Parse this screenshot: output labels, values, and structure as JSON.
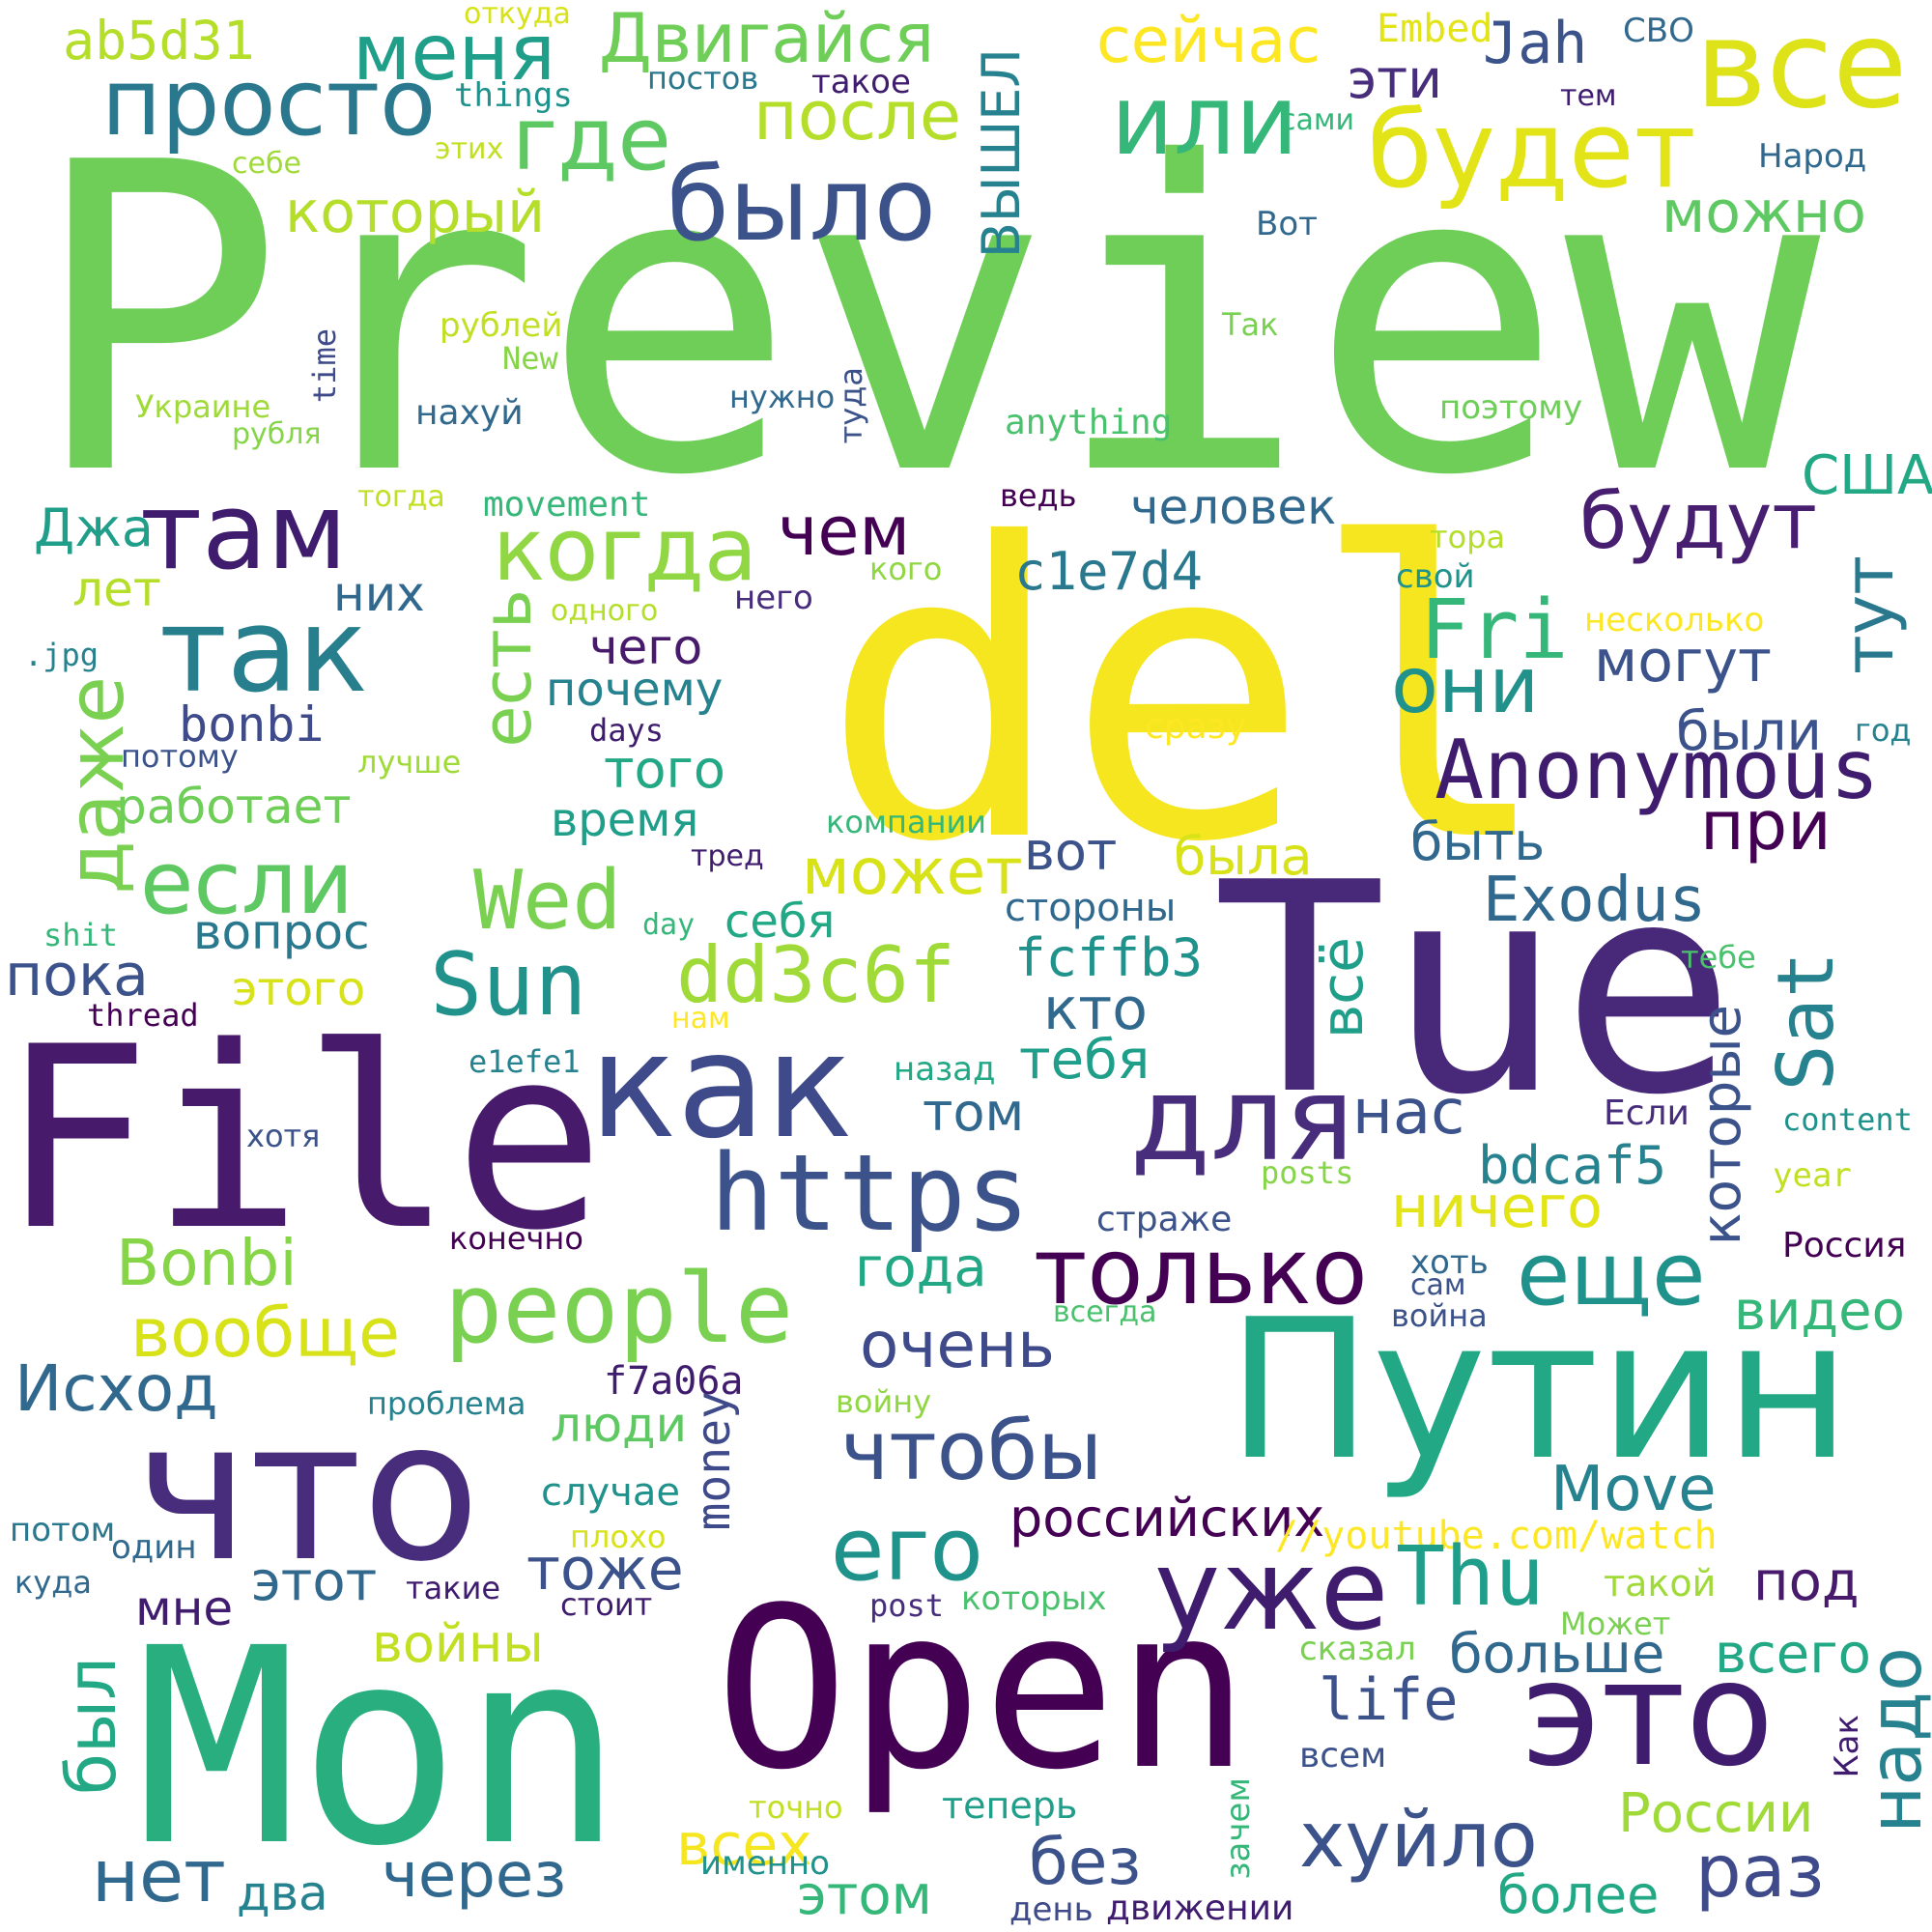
{
  "palette": {
    "dark_purple": "#440154",
    "purple": "#482878",
    "indigo": "#3e4a89",
    "blue": "#31688e",
    "teal_blue": "#26828e",
    "teal": "#1f9e89",
    "green_teal": "#35b779",
    "green": "#6ece58",
    "lime": "#b5de2b",
    "yellow": "#fde725"
  },
  "words": [
    "Preview",
    "del",
    "Tue",
    "File",
    "Mon",
    "Open",
    "Путин",
    "что",
    "как",
    "это",
    "https",
    "для",
    "people",
    "только",
    "уже",
    "еще",
    "так",
    "там",
    "когда",
    "будет",
    "все",
    "или",
    "просто",
    "было",
    "где",
    "меня",
    "Двигайся",
    "после",
    "сейчас",
    "Jah",
    "Embed",
    "СВО",
    "ab5d31",
    "откуда",
    "things",
    "постов",
    "такое",
    "эти",
    "тем",
    "сами",
    "Народ",
    "Вот",
    "можно",
    "который",
    "себе",
    "этих",
    "ВЫШЕЛ",
    "рублей",
    "New",
    "Украине",
    "time",
    "рубля",
    "нахуй",
    "нужно",
    "туда",
    "Так",
    "anything",
    "поэтому",
    "тогда",
    "movement",
    "ведь",
    "человек",
    "США",
    "будут",
    "Джа",
    "чем",
    "тора",
    "кого",
    "c1e7d4",
    "свой",
    "лет",
    "них",
    "одного",
    "него",
    "Fri",
    "они",
    "несколько",
    "тут",
    ".jpg",
    "чего",
    "почему",
    "могут",
    "bonbi",
    "даже",
    "есть",
    "days",
    "сразу",
    "были",
    "год",
    "потому",
    "лучше",
    "того",
    "Anonymous",
    "работает",
    "время",
    "компании",
    "при",
    "вот",
    "была",
    "быть",
    "если",
    "Wed",
    "может",
    "тред",
    "Exodus",
    "shit",
    "вопрос",
    "себя",
    "day",
    "стороны",
    "пока",
    "Sun",
    "dd3c6f",
    "fcffb3",
    "этого",
    "тебе",
    "Sat",
    "thread",
    "нам",
    "кто",
    "всё",
    "e1efe1",
    "назад",
    "тебя",
    "которые",
    "хотя",
    "том",
    "Если",
    "content",
    "нас",
    "bdcaf5",
    "posts",
    "year",
    "ничего",
    "страже",
    "конечно",
    "Bonbi",
    "года",
    "хоть",
    "сам",
    "Россия",
    "всегда",
    "война",
    "вообще",
    "видео",
    "очень",
    "Исход",
    "проблема",
    "f7a06a",
    "войну",
    "люди",
    "чтобы",
    "money",
    "случае",
    "Move",
    "российских",
    "потом",
    "плохо",
    "//youtube.com/watch",
    "один",
    "его",
    "куда",
    "этот",
    "такие",
    "тоже",
    "стоит",
    "post",
    "которых",
    "Thu",
    "такой",
    "под",
    "мне",
    "войны",
    "Может",
    "сказал",
    "больше",
    "всего",
    "был",
    "life",
    "надо",
    "Как",
    "всем",
    "нет",
    "два",
    "через",
    "всех",
    "точно",
    "теперь",
    "зачем",
    "без",
    "хуйло",
    "России",
    "раз",
    "более",
    "этом",
    "именно",
    "день",
    "движении"
  ]
}
